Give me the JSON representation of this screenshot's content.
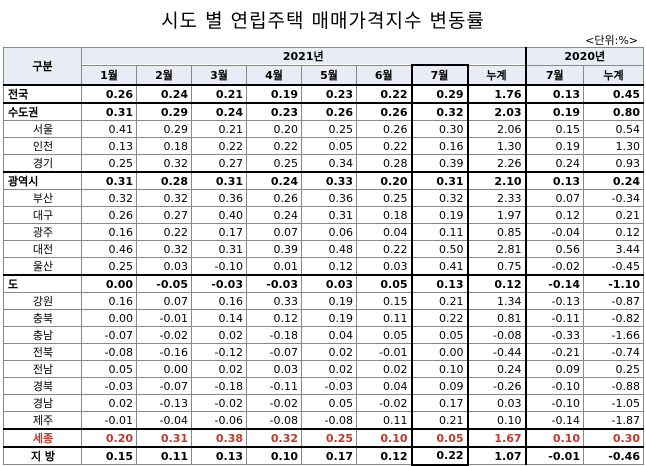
{
  "title": "시도 별 연립주택 매매가격지수 변동률",
  "unit": "<단위:%>",
  "header": {
    "region": "구분",
    "year2021": "2021년",
    "year2020": "2020년",
    "cols2021": [
      "1월",
      "2월",
      "3월",
      "4월",
      "5월",
      "6월",
      "7월",
      "누계"
    ],
    "cols2020": [
      "7월",
      "누계"
    ]
  },
  "rows": [
    {
      "name": "전국",
      "v": [
        "0.26",
        "0.24",
        "0.21",
        "0.19",
        "0.23",
        "0.22",
        "0.29",
        "1.76",
        "0.13",
        "0.45"
      ]
    },
    {
      "name": "수도권",
      "v": [
        "0.31",
        "0.29",
        "0.24",
        "0.23",
        "0.26",
        "0.26",
        "0.32",
        "2.03",
        "0.19",
        "0.80"
      ]
    },
    {
      "name": "서울",
      "v": [
        "0.41",
        "0.29",
        "0.21",
        "0.20",
        "0.25",
        "0.26",
        "0.30",
        "2.06",
        "0.15",
        "0.54"
      ]
    },
    {
      "name": "인천",
      "v": [
        "0.13",
        "0.18",
        "0.22",
        "0.22",
        "0.05",
        "0.22",
        "0.16",
        "1.30",
        "0.19",
        "1.30"
      ]
    },
    {
      "name": "경기",
      "v": [
        "0.25",
        "0.32",
        "0.27",
        "0.25",
        "0.34",
        "0.28",
        "0.39",
        "2.26",
        "0.24",
        "0.93"
      ]
    },
    {
      "name": "광역시",
      "v": [
        "0.31",
        "0.28",
        "0.31",
        "0.24",
        "0.33",
        "0.20",
        "0.31",
        "2.10",
        "0.13",
        "0.24"
      ]
    },
    {
      "name": "부산",
      "v": [
        "0.32",
        "0.32",
        "0.36",
        "0.26",
        "0.36",
        "0.25",
        "0.32",
        "2.33",
        "0.07",
        "-0.34"
      ]
    },
    {
      "name": "대구",
      "v": [
        "0.26",
        "0.27",
        "0.40",
        "0.24",
        "0.31",
        "0.18",
        "0.19",
        "1.97",
        "0.12",
        "0.21"
      ]
    },
    {
      "name": "광주",
      "v": [
        "0.16",
        "0.22",
        "0.17",
        "0.07",
        "0.06",
        "0.04",
        "0.11",
        "0.85",
        "-0.04",
        "0.12"
      ]
    },
    {
      "name": "대전",
      "v": [
        "0.46",
        "0.32",
        "0.31",
        "0.39",
        "0.48",
        "0.22",
        "0.50",
        "2.81",
        "0.56",
        "3.44"
      ]
    },
    {
      "name": "울산",
      "v": [
        "0.25",
        "0.03",
        "-0.10",
        "0.01",
        "0.12",
        "0.03",
        "0.41",
        "0.75",
        "-0.02",
        "-0.45"
      ]
    },
    {
      "name": "도",
      "v": [
        "0.00",
        "-0.05",
        "-0.03",
        "-0.03",
        "0.03",
        "0.05",
        "0.13",
        "0.12",
        "-0.14",
        "-1.10"
      ]
    },
    {
      "name": "강원",
      "v": [
        "0.16",
        "0.07",
        "0.16",
        "0.33",
        "0.19",
        "0.15",
        "0.21",
        "1.34",
        "-0.13",
        "-0.87"
      ]
    },
    {
      "name": "충북",
      "v": [
        "0.00",
        "-0.01",
        "0.14",
        "0.12",
        "0.19",
        "0.11",
        "0.22",
        "0.81",
        "-0.11",
        "-0.82"
      ]
    },
    {
      "name": "충남",
      "v": [
        "-0.07",
        "-0.02",
        "0.02",
        "-0.18",
        "0.04",
        "0.05",
        "0.05",
        "-0.08",
        "-0.33",
        "-1.66"
      ]
    },
    {
      "name": "전북",
      "v": [
        "-0.08",
        "-0.16",
        "-0.12",
        "-0.07",
        "0.02",
        "-0.01",
        "0.00",
        "-0.44",
        "-0.21",
        "-0.74"
      ]
    },
    {
      "name": "전남",
      "v": [
        "0.05",
        "0.00",
        "0.02",
        "0.03",
        "0.02",
        "0.02",
        "0.10",
        "0.24",
        "0.09",
        "0.25"
      ]
    },
    {
      "name": "경북",
      "v": [
        "-0.03",
        "-0.07",
        "-0.18",
        "-0.11",
        "-0.03",
        "0.04",
        "0.09",
        "-0.26",
        "-0.10",
        "-0.88"
      ]
    },
    {
      "name": "경남",
      "v": [
        "0.02",
        "-0.13",
        "-0.02",
        "-0.02",
        "0.05",
        "-0.02",
        "0.17",
        "0.03",
        "-0.10",
        "-1.05"
      ]
    },
    {
      "name": "제주",
      "v": [
        "-0.01",
        "-0.04",
        "-0.06",
        "-0.08",
        "-0.08",
        "0.11",
        "0.21",
        "0.10",
        "-0.14",
        "-1.87"
      ]
    },
    {
      "name": "세종",
      "v": [
        "0.20",
        "0.31",
        "0.38",
        "0.32",
        "0.25",
        "0.10",
        "0.05",
        "1.67",
        "0.10",
        "0.30"
      ]
    },
    {
      "name": "지 방",
      "v": [
        "0.15",
        "0.11",
        "0.13",
        "0.10",
        "0.17",
        "0.12",
        "0.22",
        "1.07",
        "-0.01",
        "-0.46"
      ]
    }
  ]
}
